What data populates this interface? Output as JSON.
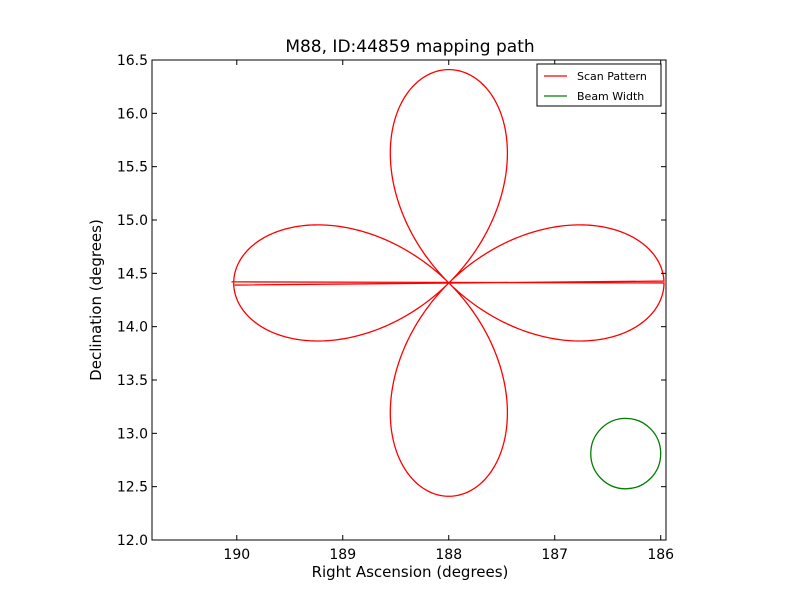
{
  "chart_data": {
    "type": "line",
    "title": "M88, ID:44859 mapping path",
    "xlabel": "Right Ascension (degrees)",
    "ylabel": "Declination (degrees)",
    "xlim": [
      190.8,
      185.95
    ],
    "ylim": [
      12.0,
      16.5
    ],
    "x_inverted": true,
    "xticks": [
      190,
      189,
      188,
      187,
      186
    ],
    "xtick_labels": [
      "190",
      "189",
      "188",
      "187",
      "186"
    ],
    "yticks": [
      12.0,
      12.5,
      13.0,
      13.5,
      14.0,
      14.5,
      15.0,
      15.5,
      16.0,
      16.5
    ],
    "ytick_labels": [
      "12.0",
      "12.5",
      "13.0",
      "13.5",
      "14.0",
      "14.5",
      "15.0",
      "15.5",
      "16.0",
      "16.5"
    ],
    "grid": false,
    "legend_position": "top-right",
    "series": [
      {
        "name": "Scan Pattern",
        "color": "#ff0000",
        "center": [
          187.999,
          14.41
        ],
        "lobe_extent_ra_deg": 2.03,
        "lobe_extent_dec_deg": 2.0,
        "path_start": [
          190.05,
          14.42
        ],
        "path_end": [
          190.02,
          14.39
        ],
        "x": [
          188.0,
          188.42,
          188.88,
          189.26,
          189.79,
          190.03,
          189.79,
          189.26,
          188.88,
          188.42,
          188.0,
          187.43,
          187.41,
          187.56,
          187.63,
          188.0,
          188.37,
          188.44,
          188.59,
          188.57,
          188.0,
          187.58,
          187.12,
          186.74,
          186.21,
          185.97,
          186.21,
          186.74,
          187.12,
          187.58,
          188.0,
          188.57,
          188.59,
          188.44,
          188.37,
          188.0,
          187.63,
          187.56,
          187.41,
          187.43,
          188.0
        ],
        "y": [
          14.41,
          14.71,
          14.89,
          14.96,
          14.84,
          14.41,
          13.98,
          13.87,
          13.93,
          14.11,
          14.41,
          15.07,
          15.62,
          16.2,
          16.3,
          16.41,
          16.3,
          16.2,
          15.62,
          15.07,
          14.41,
          14.11,
          13.93,
          13.87,
          13.98,
          14.41,
          14.84,
          14.96,
          14.89,
          14.71,
          14.41,
          13.75,
          13.2,
          12.62,
          12.52,
          12.41,
          12.52,
          12.62,
          13.2,
          13.75,
          14.41
        ]
      },
      {
        "name": "Beam Width",
        "color": "#008000",
        "center": [
          186.33,
          12.81
        ],
        "radius_deg": 0.33
      }
    ]
  }
}
